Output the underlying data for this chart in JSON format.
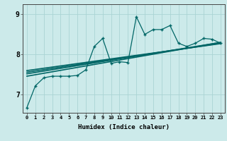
{
  "xlabel": "Humidex (Indice chaleur)",
  "ylabel": "",
  "background_color": "#cceaea",
  "grid_color": "#aad4d4",
  "line_color": "#006666",
  "xlim": [
    -0.5,
    23.5
  ],
  "ylim": [
    6.55,
    9.25
  ],
  "yticks": [
    7,
    8,
    9
  ],
  "xticks": [
    0,
    1,
    2,
    3,
    4,
    5,
    6,
    7,
    8,
    9,
    10,
    11,
    12,
    13,
    14,
    15,
    16,
    17,
    18,
    19,
    20,
    21,
    22,
    23
  ],
  "series1_x": [
    0,
    1,
    2,
    3,
    4,
    5,
    6,
    7,
    8,
    9,
    10,
    11,
    12,
    13,
    14,
    15,
    16,
    17,
    18,
    19,
    20,
    21,
    22,
    23
  ],
  "series1_y": [
    6.68,
    7.22,
    7.42,
    7.46,
    7.46,
    7.46,
    7.48,
    7.62,
    8.2,
    8.4,
    7.78,
    7.82,
    7.8,
    8.94,
    8.5,
    8.62,
    8.62,
    8.72,
    8.28,
    8.2,
    8.28,
    8.4,
    8.38,
    8.28
  ],
  "trend1_x": [
    0,
    23
  ],
  "trend1_y": [
    7.46,
    8.3
  ],
  "trend2_x": [
    0,
    23
  ],
  "trend2_y": [
    7.52,
    8.3
  ],
  "trend3_x": [
    0,
    23
  ],
  "trend3_y": [
    7.56,
    8.28
  ],
  "trend4_x": [
    0,
    23
  ],
  "trend4_y": [
    7.6,
    8.27
  ]
}
